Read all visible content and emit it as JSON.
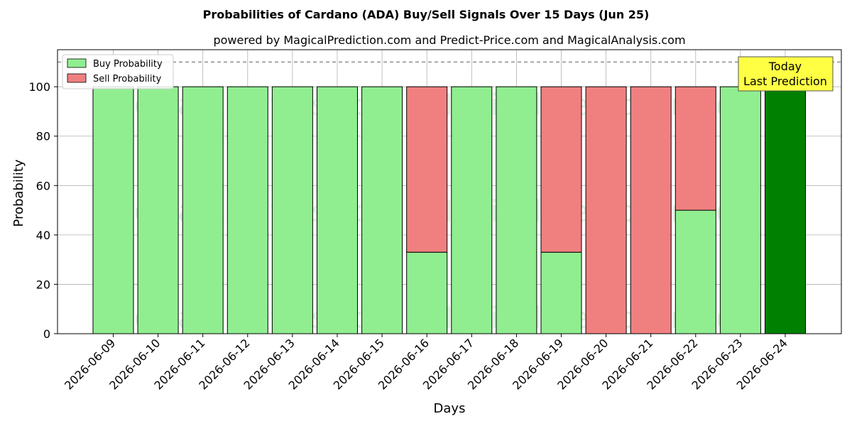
{
  "chart_data": {
    "type": "bar",
    "stacked": true,
    "title": "Probabilities of Cardano (ADA) Buy/Sell Signals Over 15 Days (Jun 25)",
    "subtitle": "powered by MagicalPrediction.com and Predict-Price.com and MagicalAnalysis.com",
    "xlabel": "Days",
    "ylabel": "Probability",
    "ylim": [
      0,
      115
    ],
    "yticks": [
      0,
      20,
      40,
      60,
      80,
      100
    ],
    "reference_line": 110,
    "grid": true,
    "legend_position": "top-left",
    "categories": [
      "2026-06-09",
      "2026-06-10",
      "2026-06-11",
      "2026-06-12",
      "2026-06-13",
      "2026-06-14",
      "2026-06-15",
      "2026-06-16",
      "2026-06-17",
      "2026-06-18",
      "2026-06-19",
      "2026-06-20",
      "2026-06-21",
      "2026-06-22",
      "2026-06-23",
      "2026-06-24"
    ],
    "series": [
      {
        "name": "Buy Probability",
        "color": "#90ee90",
        "values": [
          100,
          100,
          100,
          100,
          100,
          100,
          100,
          33,
          100,
          100,
          33,
          0,
          0,
          50,
          100,
          100
        ]
      },
      {
        "name": "Sell Probability",
        "color": "#f08080",
        "values": [
          0,
          0,
          0,
          0,
          0,
          0,
          0,
          67,
          0,
          0,
          67,
          100,
          100,
          50,
          0,
          0
        ]
      }
    ],
    "highlight": {
      "index": 15,
      "color": "#008000"
    },
    "annotation": {
      "lines": [
        "Today",
        "Last Prediction"
      ],
      "background": "#ffff44"
    },
    "watermarks": [
      "MagicalAnalysis.com",
      "MagicalPrediction.com"
    ]
  }
}
